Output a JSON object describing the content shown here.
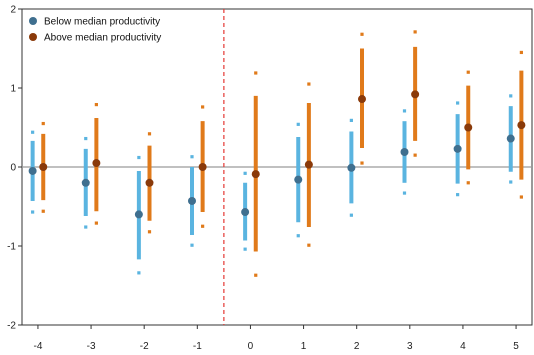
{
  "chart_data": {
    "type": "scatter",
    "title": "",
    "xlabel": "",
    "ylabel": "",
    "xlim": [
      -4.3,
      5.3
    ],
    "ylim": [
      -2,
      2
    ],
    "x_ticks": [
      -4,
      -3,
      -2,
      -1,
      0,
      1,
      2,
      3,
      4,
      5
    ],
    "y_ticks": [
      -2,
      -1,
      0,
      1,
      2
    ],
    "reference_vline": -0.5,
    "reference_hline": 0,
    "grid": false,
    "legend_position": "top-left",
    "series": [
      {
        "name": "Below median productivity",
        "color": "#5ab4e0",
        "marker_color": "#3f6f8f",
        "offset": -0.1,
        "points": [
          {
            "x": -4,
            "y": -0.05,
            "ci_inner": [
              -0.43,
              0.33
            ],
            "ci_outer": [
              -0.57,
              0.44
            ]
          },
          {
            "x": -3,
            "y": -0.2,
            "ci_inner": [
              -0.62,
              0.23
            ],
            "ci_outer": [
              -0.76,
              0.36
            ]
          },
          {
            "x": -2,
            "y": -0.6,
            "ci_inner": [
              -1.17,
              -0.05
            ],
            "ci_outer": [
              -1.34,
              0.12
            ]
          },
          {
            "x": -1,
            "y": -0.43,
            "ci_inner": [
              -0.86,
              0.0
            ],
            "ci_outer": [
              -0.99,
              0.13
            ]
          },
          {
            "x": 0,
            "y": -0.57,
            "ci_inner": [
              -0.93,
              -0.2
            ],
            "ci_outer": [
              -1.04,
              -0.08
            ]
          },
          {
            "x": 1,
            "y": -0.16,
            "ci_inner": [
              -0.7,
              0.38
            ],
            "ci_outer": [
              -0.87,
              0.54
            ]
          },
          {
            "x": 2,
            "y": -0.01,
            "ci_inner": [
              -0.46,
              0.45
            ],
            "ci_outer": [
              -0.61,
              0.59
            ]
          },
          {
            "x": 3,
            "y": 0.19,
            "ci_inner": [
              -0.2,
              0.58
            ],
            "ci_outer": [
              -0.33,
              0.71
            ]
          },
          {
            "x": 4,
            "y": 0.23,
            "ci_inner": [
              -0.21,
              0.67
            ],
            "ci_outer": [
              -0.35,
              0.81
            ]
          },
          {
            "x": 5,
            "y": 0.36,
            "ci_inner": [
              -0.06,
              0.77
            ],
            "ci_outer": [
              -0.19,
              0.9
            ]
          }
        ]
      },
      {
        "name": "Above median productivity",
        "color": "#e07a1a",
        "marker_color": "#8a3a0a",
        "offset": 0.1,
        "points": [
          {
            "x": -4,
            "y": 0.0,
            "ci_inner": [
              -0.42,
              0.42
            ],
            "ci_outer": [
              -0.56,
              0.55
            ]
          },
          {
            "x": -3,
            "y": 0.05,
            "ci_inner": [
              -0.56,
              0.62
            ],
            "ci_outer": [
              -0.71,
              0.79
            ]
          },
          {
            "x": -2,
            "y": -0.2,
            "ci_inner": [
              -0.68,
              0.27
            ],
            "ci_outer": [
              -0.82,
              0.42
            ]
          },
          {
            "x": -1,
            "y": 0.0,
            "ci_inner": [
              -0.57,
              0.58
            ],
            "ci_outer": [
              -0.75,
              0.76
            ]
          },
          {
            "x": 0,
            "y": -0.09,
            "ci_inner": [
              -1.07,
              0.9
            ],
            "ci_outer": [
              -1.37,
              1.19
            ]
          },
          {
            "x": 1,
            "y": 0.03,
            "ci_inner": [
              -0.76,
              0.81
            ],
            "ci_outer": [
              -0.99,
              1.05
            ]
          },
          {
            "x": 2,
            "y": 0.86,
            "ci_inner": [
              0.24,
              1.5
            ],
            "ci_outer": [
              0.05,
              1.68
            ]
          },
          {
            "x": 3,
            "y": 0.92,
            "ci_inner": [
              0.33,
              1.52
            ],
            "ci_outer": [
              0.15,
              1.71
            ]
          },
          {
            "x": 4,
            "y": 0.5,
            "ci_inner": [
              -0.03,
              1.03
            ],
            "ci_outer": [
              -0.2,
              1.2
            ]
          },
          {
            "x": 5,
            "y": 0.53,
            "ci_inner": [
              -0.16,
              1.22
            ],
            "ci_outer": [
              -0.38,
              1.45
            ]
          }
        ]
      }
    ]
  }
}
